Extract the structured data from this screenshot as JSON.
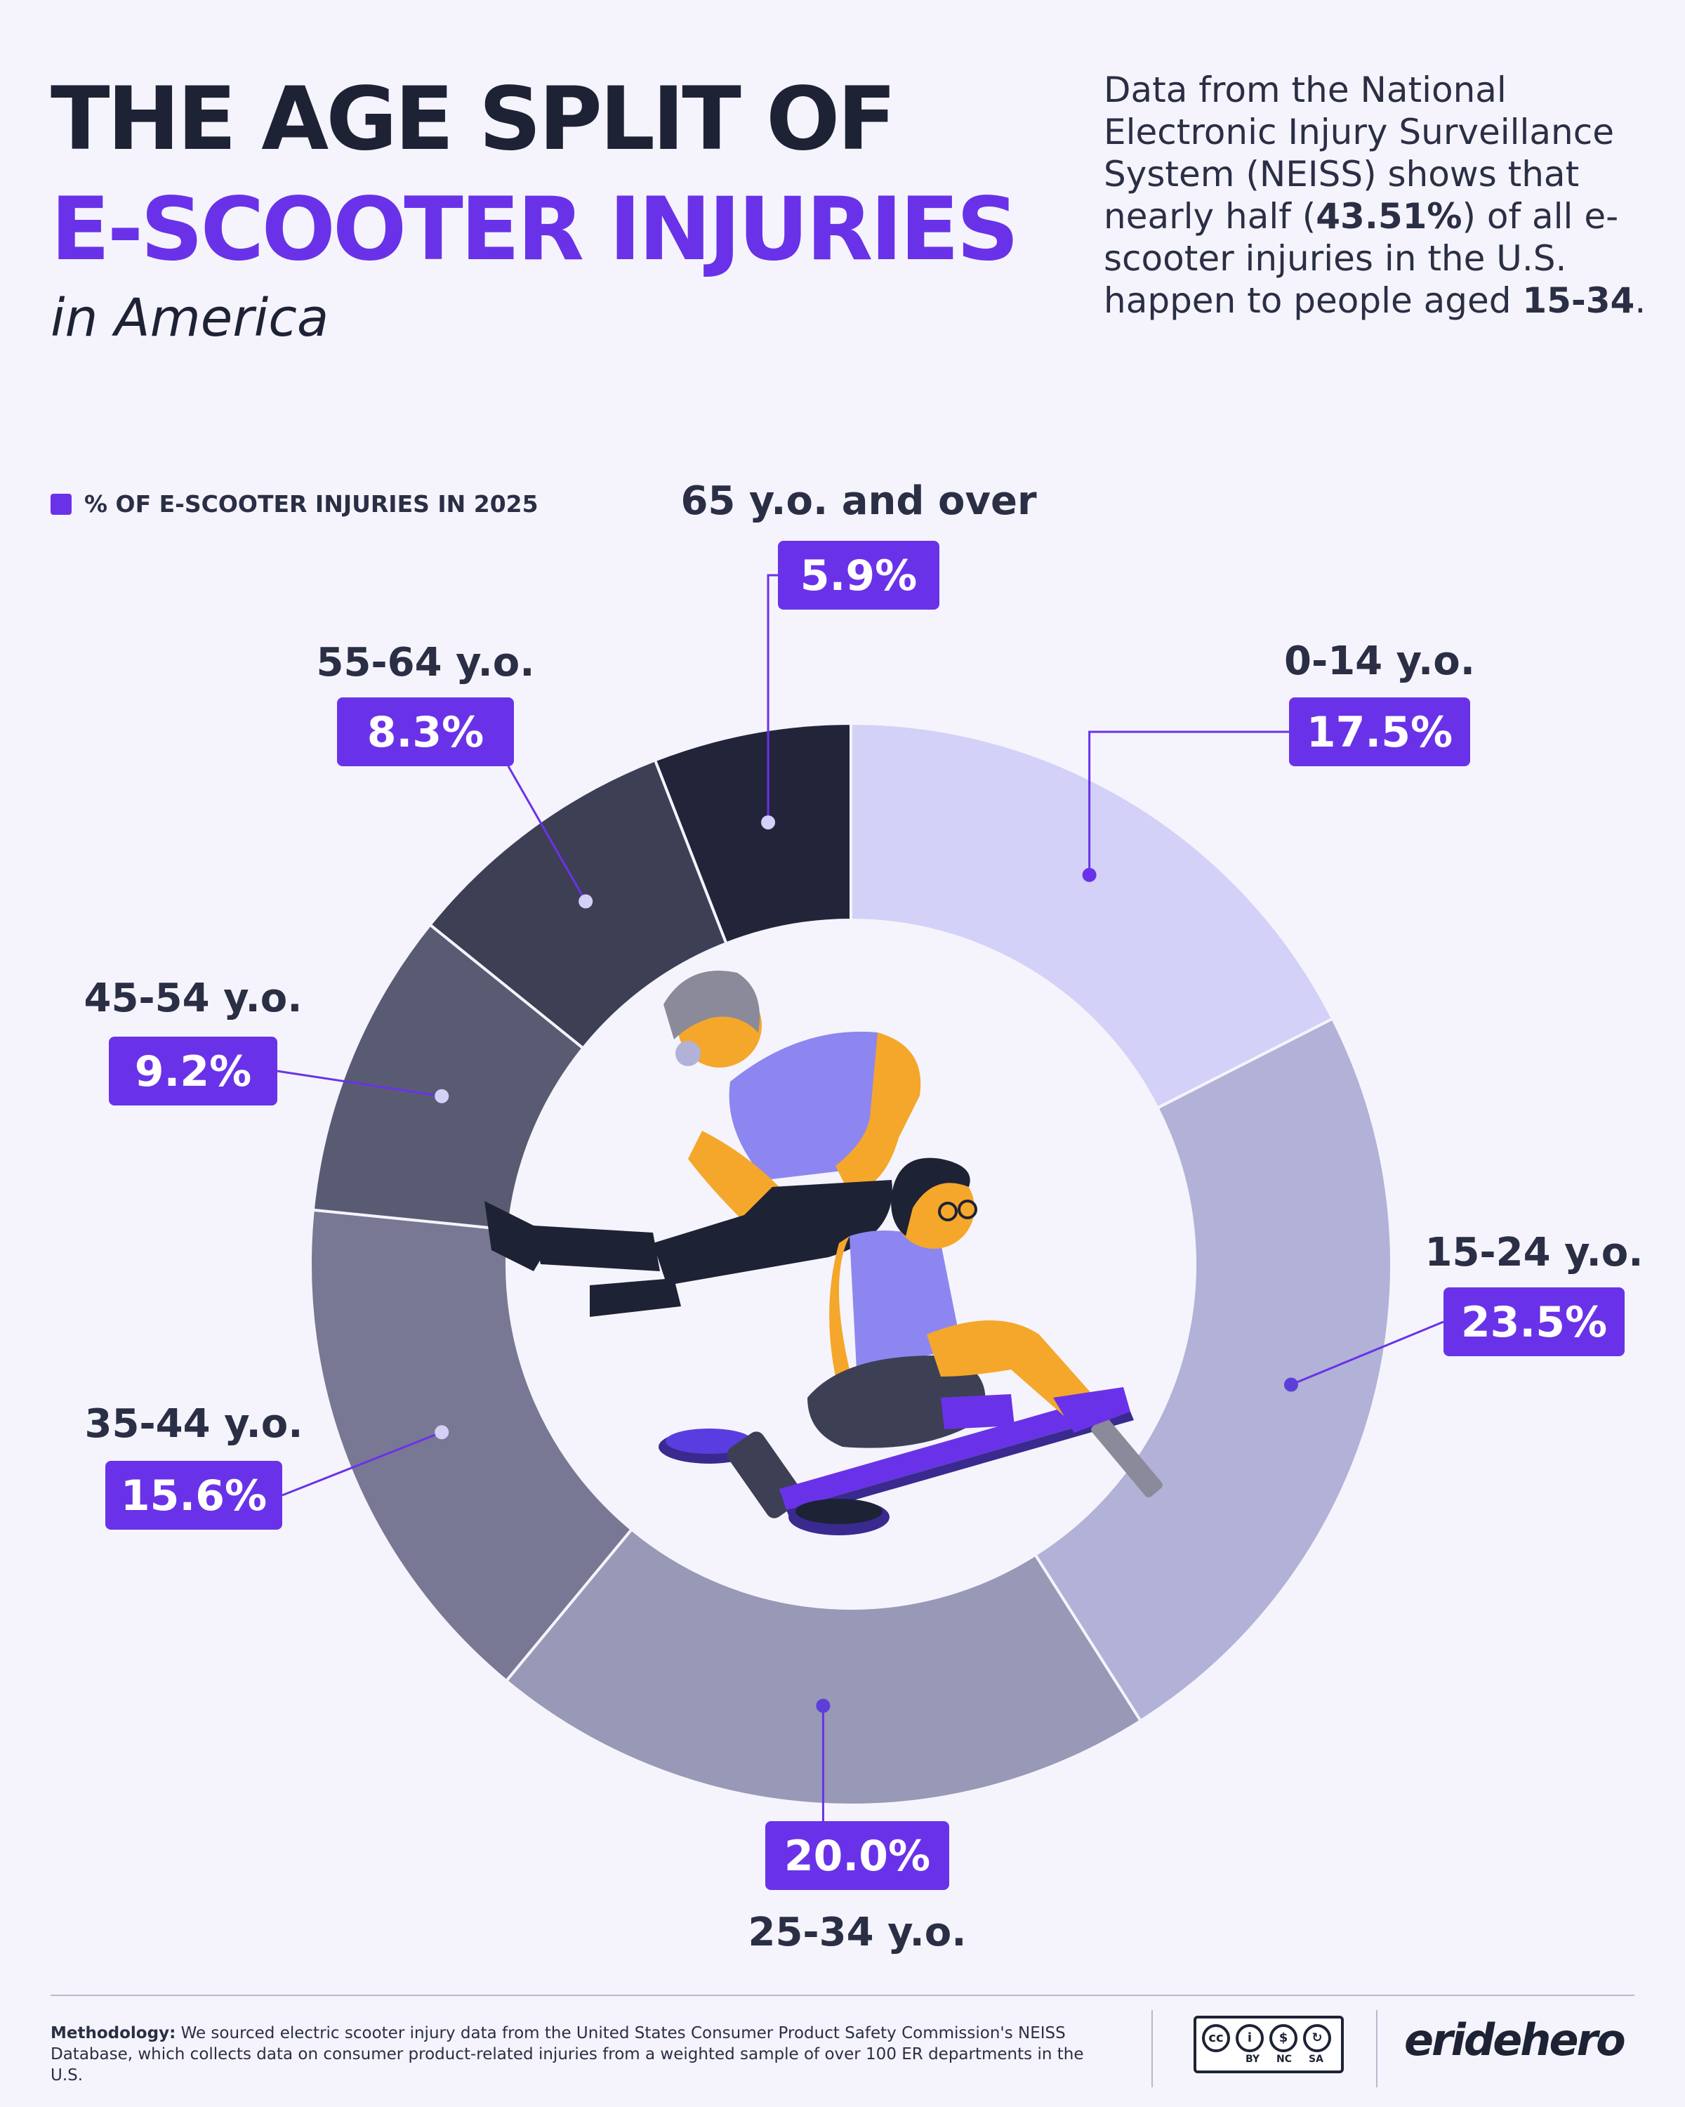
{
  "header": {
    "title_line1": "THE AGE SPLIT OF",
    "title_line2": "E-SCOOTER INJURIES",
    "title_line3": "in America"
  },
  "intro": {
    "text_before": "Data from the National Electronic Injury Surveillance System (NEISS) shows that nearly half (",
    "highlight_pct": "43.51%",
    "text_middle": ") of all e-scooter injuries in the U.S. happen to people aged ",
    "highlight_age": "15-34",
    "text_after": "."
  },
  "legend": {
    "label": "% OF E-SCOOTER INJURIES IN 2025"
  },
  "chart_data": {
    "type": "pie",
    "series_name": "% OF E-SCOOTER INJURIES IN 2025",
    "categories": [
      "0-14 y.o.",
      "15-24 y.o.",
      "25-34 y.o.",
      "35-44 y.o.",
      "45-54 y.o.",
      "55-64 y.o.",
      "65 y.o. and over"
    ],
    "values": [
      17.5,
      23.5,
      20.0,
      15.6,
      9.2,
      8.3,
      5.9
    ],
    "labels": [
      "17.5%",
      "23.5%",
      "20.0%",
      "15.6%",
      "9.2%",
      "8.3%",
      "5.9%"
    ],
    "colors": [
      "#d3d1f7",
      "#b2b1d7",
      "#9898b7",
      "#787894",
      "#595b73",
      "#3d3f55",
      "#22253a"
    ],
    "label_color": "#6a32e8",
    "donut": true
  },
  "footer": {
    "method_label": "Methodology:",
    "method_text": " We sourced electric scooter injury data from the United States Consumer Product Safety Commission's NEISS Database, which collects data on consumer product-related injuries from a weighted sample of over 100 ER departments in the U.S.",
    "license_icons": [
      "cc",
      "by",
      "nc",
      "sa"
    ],
    "license_labels": [
      "BY",
      "NC",
      "SA"
    ],
    "brand": "eridehero"
  }
}
